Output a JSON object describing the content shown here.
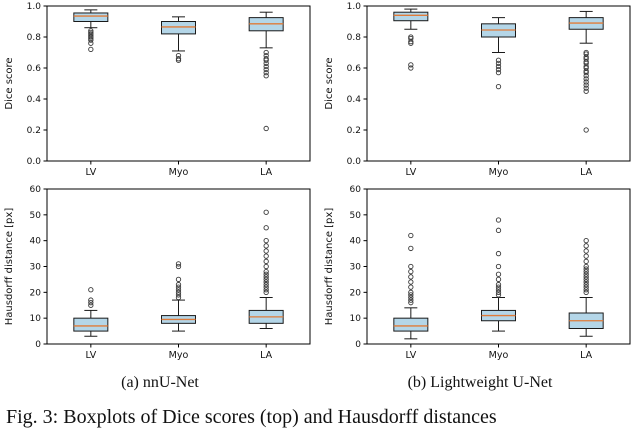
{
  "figure": {
    "caption_a": "(a) nnU-Net",
    "caption_b": "(b) Lightweight U-Net",
    "fig_caption": "Fig. 3: Boxplots of Dice scores (top) and Hausdorff distances"
  },
  "style": {
    "box_fill": "#b4d6e8",
    "box_edge": "#1a1a1a",
    "median_color": "#e07b39",
    "whisker_color": "#1a1a1a",
    "outlier_color": "#3a3a3a",
    "axis_color": "#000000",
    "tick_label_color": "#111111"
  },
  "chart_data": [
    {
      "id": "dice-nnunet",
      "type": "boxplot",
      "ylabel": "Dice score",
      "ylim": [
        0,
        1
      ],
      "yticks": [
        0,
        0.2,
        0.4,
        0.6,
        0.8,
        1.0
      ],
      "ytick_labels": [
        "0.0",
        "0.2",
        "0.4",
        "0.6",
        "0.8",
        "1.0"
      ],
      "categories": [
        "LV",
        "Myo",
        "LA"
      ],
      "boxes": [
        {
          "category": "LV",
          "whisker_low": 0.86,
          "q1": 0.9,
          "median": 0.935,
          "q3": 0.955,
          "whisker_high": 0.975,
          "outliers": [
            0.84,
            0.83,
            0.82,
            0.81,
            0.8,
            0.79,
            0.78,
            0.76,
            0.72
          ]
        },
        {
          "category": "Myo",
          "whisker_low": 0.71,
          "q1": 0.82,
          "median": 0.865,
          "q3": 0.9,
          "whisker_high": 0.93,
          "outliers": [
            0.68,
            0.66,
            0.65
          ]
        },
        {
          "category": "LA",
          "whisker_low": 0.73,
          "q1": 0.84,
          "median": 0.885,
          "q3": 0.925,
          "whisker_high": 0.96,
          "outliers": [
            0.7,
            0.68,
            0.66,
            0.65,
            0.63,
            0.61,
            0.59,
            0.57,
            0.55,
            0.21
          ]
        }
      ]
    },
    {
      "id": "dice-lightweight",
      "type": "boxplot",
      "ylabel": "Dice score",
      "ylim": [
        0,
        1
      ],
      "yticks": [
        0,
        0.2,
        0.4,
        0.6,
        0.8,
        1.0
      ],
      "ytick_labels": [
        "0.0",
        "0.2",
        "0.4",
        "0.6",
        "0.8",
        "1.0"
      ],
      "categories": [
        "LV",
        "Myo",
        "LA"
      ],
      "boxes": [
        {
          "category": "LV",
          "whisker_low": 0.85,
          "q1": 0.905,
          "median": 0.94,
          "q3": 0.96,
          "whisker_high": 0.98,
          "outliers": [
            0.8,
            0.79,
            0.77,
            0.76,
            0.62,
            0.6
          ]
        },
        {
          "category": "Myo",
          "whisker_low": 0.7,
          "q1": 0.8,
          "median": 0.845,
          "q3": 0.885,
          "whisker_high": 0.925,
          "outliers": [
            0.65,
            0.63,
            0.61,
            0.59,
            0.57,
            0.48
          ]
        },
        {
          "category": "LA",
          "whisker_low": 0.76,
          "q1": 0.85,
          "median": 0.89,
          "q3": 0.925,
          "whisker_high": 0.965,
          "outliers": [
            0.7,
            0.69,
            0.67,
            0.66,
            0.64,
            0.63,
            0.61,
            0.6,
            0.58,
            0.57,
            0.55,
            0.53,
            0.51,
            0.49,
            0.47,
            0.45,
            0.2
          ]
        }
      ]
    },
    {
      "id": "hd-nnunet",
      "type": "boxplot",
      "ylabel": "Hausdorff distance [px]",
      "ylim": [
        0,
        60
      ],
      "yticks": [
        0,
        10,
        20,
        30,
        40,
        50,
        60
      ],
      "ytick_labels": [
        "0",
        "10",
        "20",
        "30",
        "40",
        "50",
        "60"
      ],
      "categories": [
        "LV",
        "Myo",
        "LA"
      ],
      "boxes": [
        {
          "category": "LV",
          "whisker_low": 3,
          "q1": 5,
          "median": 7,
          "q3": 10,
          "whisker_high": 13,
          "outliers": [
            15,
            16,
            17,
            21
          ]
        },
        {
          "category": "Myo",
          "whisker_low": 5,
          "q1": 8,
          "median": 9.5,
          "q3": 11,
          "whisker_high": 17,
          "outliers": [
            18,
            19,
            20,
            21,
            22,
            23,
            25,
            30,
            31
          ]
        },
        {
          "category": "LA",
          "whisker_low": 6,
          "q1": 8,
          "median": 10.5,
          "q3": 13,
          "whisker_high": 18,
          "outliers": [
            20,
            21,
            22,
            23,
            24,
            25,
            26,
            27,
            28,
            30,
            32,
            34,
            36,
            38,
            40,
            45,
            51
          ]
        }
      ]
    },
    {
      "id": "hd-lightweight",
      "type": "boxplot",
      "ylabel": "Hausdorff distance [px]",
      "ylim": [
        0,
        60
      ],
      "yticks": [
        0,
        10,
        20,
        30,
        40,
        50,
        60
      ],
      "ytick_labels": [
        "0",
        "10",
        "20",
        "30",
        "40",
        "50",
        "60"
      ],
      "categories": [
        "LV",
        "Myo",
        "LA"
      ],
      "boxes": [
        {
          "category": "LV",
          "whisker_low": 2,
          "q1": 5,
          "median": 7,
          "q3": 10,
          "whisker_high": 14,
          "outliers": [
            16,
            17,
            18,
            19,
            20,
            22,
            24,
            26,
            28,
            30,
            37,
            42
          ]
        },
        {
          "category": "Myo",
          "whisker_low": 5,
          "q1": 9,
          "median": 11,
          "q3": 13,
          "whisker_high": 18,
          "outliers": [
            19,
            20,
            21,
            22,
            23,
            25,
            27,
            30,
            35,
            44,
            48
          ]
        },
        {
          "category": "LA",
          "whisker_low": 3,
          "q1": 6,
          "median": 9,
          "q3": 12,
          "whisker_high": 18,
          "outliers": [
            20,
            21,
            22,
            23,
            24,
            25,
            26,
            27,
            28,
            29,
            30,
            32,
            34,
            36,
            38,
            40
          ]
        }
      ]
    }
  ]
}
